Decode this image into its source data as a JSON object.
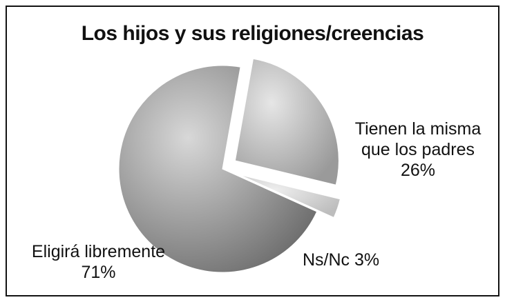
{
  "chart_data": {
    "type": "pie",
    "title": "Los hijos y sus religiones/creencias",
    "categories": [
      "Tienen la misma que los padres",
      "Ns/Nc",
      "Eligirá libremente"
    ],
    "values": [
      26,
      3,
      71
    ],
    "value_labels": [
      "26%",
      "3%",
      "71%"
    ],
    "colors": [
      "#b0b0b0",
      "#cfcfcf",
      "#8a8a8a"
    ]
  }
}
